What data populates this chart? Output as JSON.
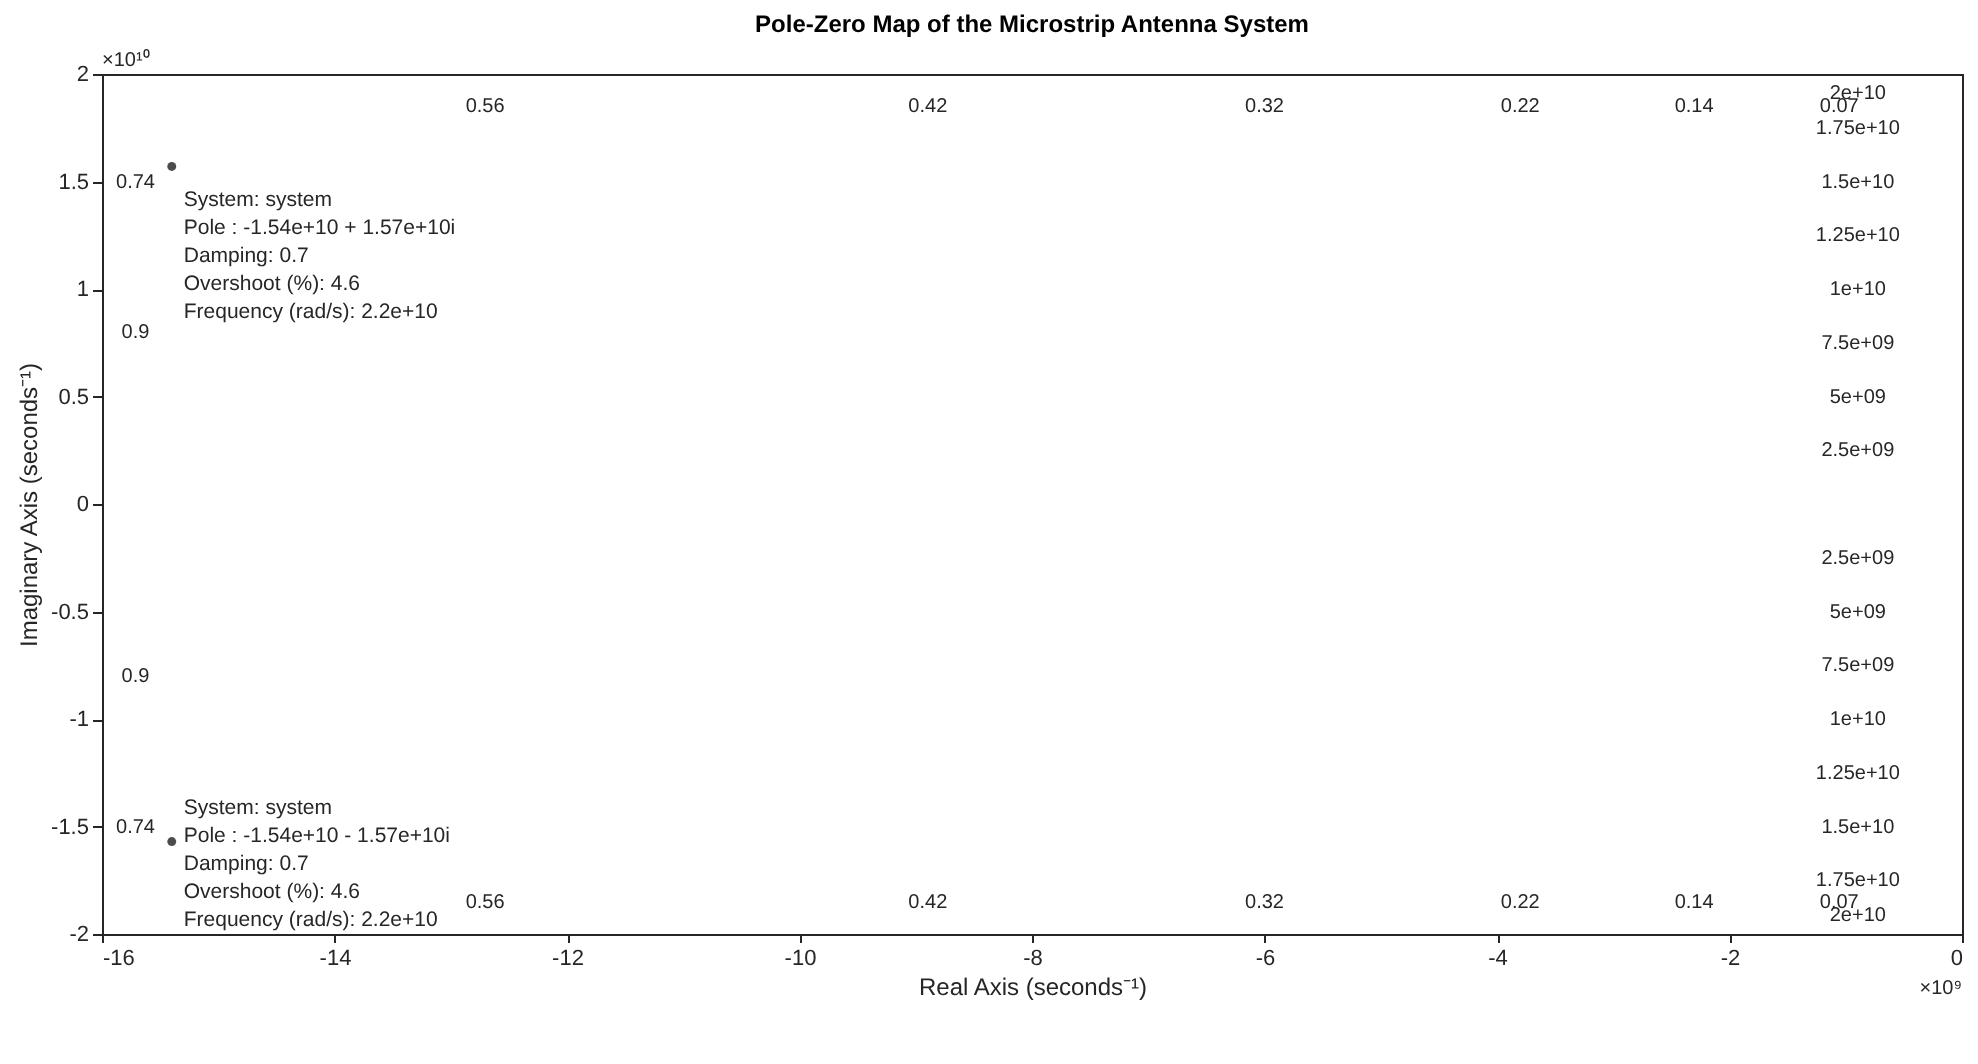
{
  "chart_data": {
    "type": "scatter",
    "title": "Pole-Zero Map of the Microstrip Antenna System",
    "xlabel": "Real Axis (seconds⁻¹)",
    "ylabel": "Imaginary Axis (seconds⁻¹)",
    "x": [
      -15.4,
      -15.4
    ],
    "series": [
      {
        "color": "#000000",
        "values": [
          1.57,
          -1.57
        ]
      }
    ],
    "marker": "circle",
    "xlim": [
      -16,
      0
    ],
    "xticks": [
      -16,
      -14,
      -12,
      -10,
      -8,
      -6,
      -4,
      -2,
      0
    ],
    "ylim": [
      -2,
      2
    ],
    "yticks": [
      -2,
      -1.5,
      -1,
      -0.5,
      0,
      0.5,
      1,
      1.5,
      2
    ],
    "annotations": [
      "×10¹⁰",
      "×10⁹",
      {
        "text": "System: system\nPole : -1.54e+10 + 1.57e+10i\nDamping: 0.7\nOvershoot (%): 4.6\nFrequency (rad/s): 2.2e+10",
        "x": -15.4,
        "y": 1.57
      },
      {
        "text": "System: system\nPole : -1.54e+10 - 1.57e+10i\nDamping: 0.7\nOvershoot (%): 4.6\nFrequency (rad/s): 2.2e+10",
        "x": -15.4,
        "y": -1.57
      },
      "0.56",
      "0.42",
      "0.32",
      "0.22",
      "0.14",
      "0.07",
      "0.56",
      "0.42",
      "0.32",
      "0.22",
      "0.14",
      "0.07",
      "0.74",
      "0.9",
      "0.9",
      "0.74",
      "2e+10",
      "1.75e+10",
      "1.5e+10",
      "1.25e+10",
      "1e+10",
      "7.5e+09",
      "5e+09",
      "2.5e+09",
      "2.5e+09",
      "5e+09",
      "7.5e+09",
      "1e+10",
      "1.25e+10",
      "1.5e+10",
      "1.75e+10",
      "2e+10"
    ]
  }
}
